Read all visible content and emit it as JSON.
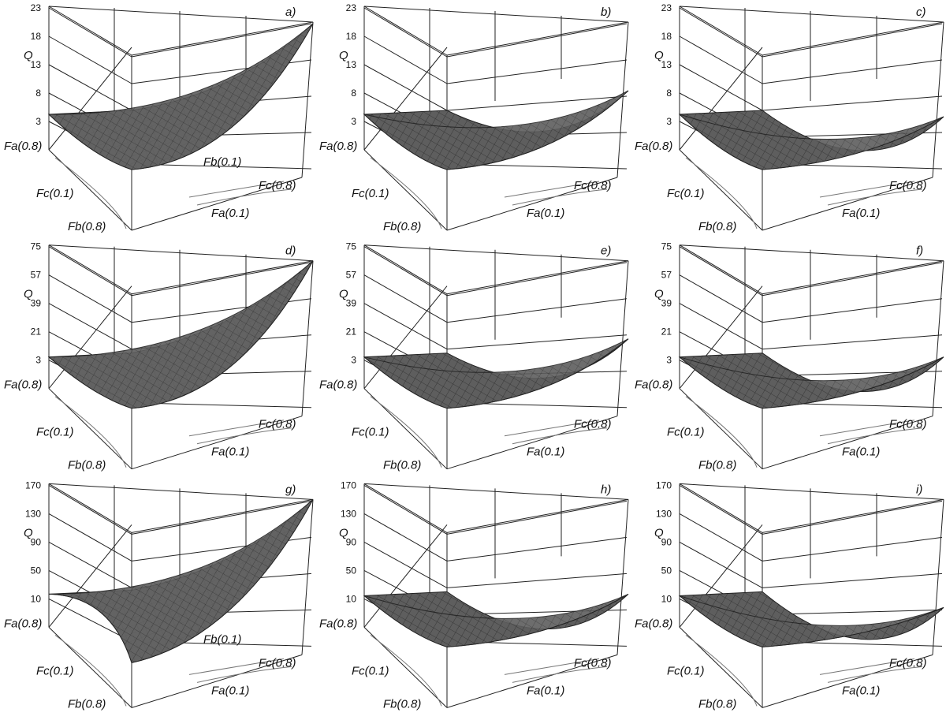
{
  "axis_labels": {
    "q": "Q",
    "fa_high": "Fa(0.8)",
    "fa_low": "Fa(0.1)",
    "fb_high": "Fb(0.8)",
    "fb_low": "Fb(0.1)",
    "fc_high": "Fc(0.8)",
    "fc_low": "Fc(0.1)"
  },
  "panels": [
    {
      "letter": "a)",
      "yticks": [
        23,
        18,
        13,
        8,
        3
      ]
    },
    {
      "letter": "b)",
      "yticks": [
        23,
        18,
        13,
        8,
        3
      ]
    },
    {
      "letter": "c)",
      "yticks": [
        23,
        18,
        13,
        8,
        3
      ]
    },
    {
      "letter": "d)",
      "yticks": [
        75,
        57,
        39,
        21,
        3
      ]
    },
    {
      "letter": "e)",
      "yticks": [
        75,
        57,
        39,
        21,
        3
      ]
    },
    {
      "letter": "f)",
      "yticks": [
        75,
        57,
        39,
        21,
        3
      ]
    },
    {
      "letter": "g)",
      "yticks": [
        170,
        130,
        90,
        50,
        10
      ]
    },
    {
      "letter": "h)",
      "yticks": [
        170,
        130,
        90,
        50,
        10
      ]
    },
    {
      "letter": "i)",
      "yticks": [
        170,
        130,
        90,
        50,
        10
      ]
    }
  ]
}
